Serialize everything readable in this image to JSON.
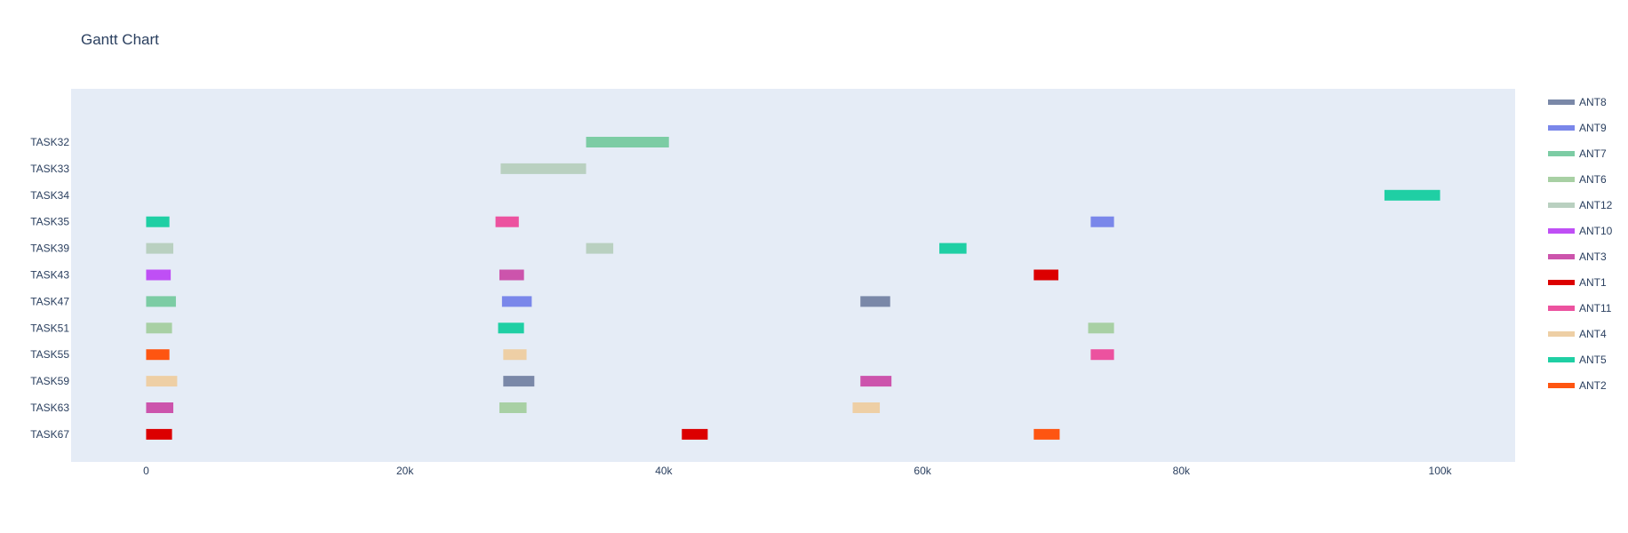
{
  "chart_data": {
    "type": "gantt",
    "title": "Gantt Chart",
    "xlabel": "",
    "ylabel": "",
    "xlim": [
      -5800,
      105800
    ],
    "x_ticks": [
      {
        "value": 0,
        "label": "0"
      },
      {
        "value": 20000,
        "label": "20k"
      },
      {
        "value": 40000,
        "label": "40k"
      },
      {
        "value": 60000,
        "label": "60k"
      },
      {
        "value": 80000,
        "label": "80k"
      },
      {
        "value": 100000,
        "label": "100k"
      }
    ],
    "grid": false,
    "legend_position": "right",
    "tasks": [
      "TASK32",
      "TASK33",
      "TASK34",
      "TASK35",
      "TASK39",
      "TASK43",
      "TASK47",
      "TASK51",
      "TASK55",
      "TASK59",
      "TASK63",
      "TASK67"
    ],
    "series": [
      {
        "name": "ANT8",
        "color": "#7a88a8"
      },
      {
        "name": "ANT9",
        "color": "#7a87ea"
      },
      {
        "name": "ANT7",
        "color": "#7ccca4"
      },
      {
        "name": "ANT6",
        "color": "#a8d0a4"
      },
      {
        "name": "ANT12",
        "color": "#b9d0c0"
      },
      {
        "name": "ANT10",
        "color": "#bf4ff5"
      },
      {
        "name": "ANT3",
        "color": "#cc54ac"
      },
      {
        "name": "ANT1",
        "color": "#dc0000"
      },
      {
        "name": "ANT11",
        "color": "#ec529f"
      },
      {
        "name": "ANT4",
        "color": "#eecfa5"
      },
      {
        "name": "ANT5",
        "color": "#1fcfa4"
      },
      {
        "name": "ANT2",
        "color": "#fe5511"
      }
    ],
    "bars": [
      {
        "task": "TASK32",
        "start": 34000,
        "end": 40400,
        "series": "ANT7"
      },
      {
        "task": "TASK33",
        "start": 27400,
        "end": 34000,
        "series": "ANT12"
      },
      {
        "task": "TASK34",
        "start": 95700,
        "end": 100000,
        "series": "ANT5"
      },
      {
        "task": "TASK35",
        "start": 0,
        "end": 1800,
        "series": "ANT5"
      },
      {
        "task": "TASK35",
        "start": 27000,
        "end": 28800,
        "series": "ANT11"
      },
      {
        "task": "TASK35",
        "start": 73000,
        "end": 74800,
        "series": "ANT9"
      },
      {
        "task": "TASK39",
        "start": 0,
        "end": 2100,
        "series": "ANT12"
      },
      {
        "task": "TASK39",
        "start": 34000,
        "end": 36100,
        "series": "ANT12"
      },
      {
        "task": "TASK39",
        "start": 61300,
        "end": 63400,
        "series": "ANT5"
      },
      {
        "task": "TASK43",
        "start": 0,
        "end": 1900,
        "series": "ANT10"
      },
      {
        "task": "TASK43",
        "start": 27300,
        "end": 29200,
        "series": "ANT3"
      },
      {
        "task": "TASK43",
        "start": 68600,
        "end": 70500,
        "series": "ANT1"
      },
      {
        "task": "TASK47",
        "start": 0,
        "end": 2300,
        "series": "ANT7"
      },
      {
        "task": "TASK47",
        "start": 27500,
        "end": 29800,
        "series": "ANT9"
      },
      {
        "task": "TASK47",
        "start": 55200,
        "end": 57500,
        "series": "ANT8"
      },
      {
        "task": "TASK51",
        "start": 0,
        "end": 2000,
        "series": "ANT6"
      },
      {
        "task": "TASK51",
        "start": 27200,
        "end": 29200,
        "series": "ANT5"
      },
      {
        "task": "TASK51",
        "start": 72800,
        "end": 74800,
        "series": "ANT6"
      },
      {
        "task": "TASK55",
        "start": 0,
        "end": 1800,
        "series": "ANT2"
      },
      {
        "task": "TASK55",
        "start": 27600,
        "end": 29400,
        "series": "ANT4"
      },
      {
        "task": "TASK55",
        "start": 73000,
        "end": 74800,
        "series": "ANT11"
      },
      {
        "task": "TASK59",
        "start": 0,
        "end": 2400,
        "series": "ANT4"
      },
      {
        "task": "TASK59",
        "start": 27600,
        "end": 30000,
        "series": "ANT8"
      },
      {
        "task": "TASK59",
        "start": 55200,
        "end": 57600,
        "series": "ANT3"
      },
      {
        "task": "TASK63",
        "start": 0,
        "end": 2100,
        "series": "ANT3"
      },
      {
        "task": "TASK63",
        "start": 27300,
        "end": 29400,
        "series": "ANT6"
      },
      {
        "task": "TASK63",
        "start": 54600,
        "end": 56700,
        "series": "ANT4"
      },
      {
        "task": "TASK67",
        "start": 0,
        "end": 2000,
        "series": "ANT1"
      },
      {
        "task": "TASK67",
        "start": 41400,
        "end": 43400,
        "series": "ANT1"
      },
      {
        "task": "TASK67",
        "start": 68600,
        "end": 70600,
        "series": "ANT2"
      }
    ]
  }
}
